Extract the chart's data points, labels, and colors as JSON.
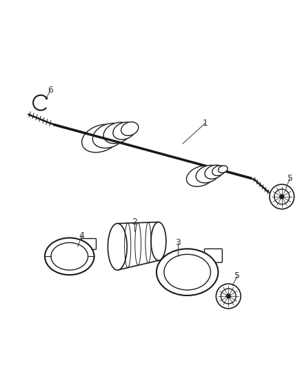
{
  "bg_color": "#ffffff",
  "line_color": "#1a1a1a",
  "label_color": "#333333",
  "fig_width": 4.38,
  "fig_height": 5.33,
  "dpi": 100,
  "line_width": 1.0
}
